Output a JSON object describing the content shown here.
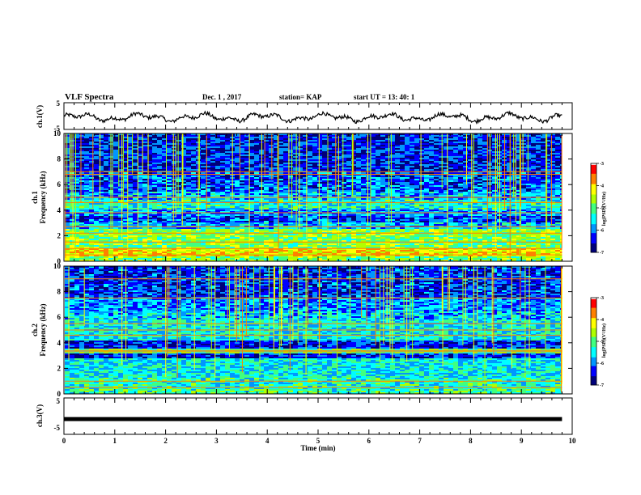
{
  "header": {
    "title": "VLF Spectra",
    "date": "Dec. 1 , 2017",
    "station": "station= KAP",
    "start": "start UT = 13: 40: 1"
  },
  "chart_data": [
    {
      "type": "line",
      "ylabel": "ch.1(V)",
      "ylim": [
        -5,
        5
      ],
      "y_ticks": [
        "5",
        "-5"
      ],
      "xlim": [
        0,
        10
      ],
      "color": "#000000",
      "x_end": 9.8,
      "wave": {
        "level": -0.5,
        "amplitude": 1.8,
        "noise": 0.7
      }
    },
    {
      "type": "heatmap",
      "ylabel": "Frequency (kHz)",
      "channel_label": "ch.1",
      "xlim": [
        0,
        10
      ],
      "ylim": [
        0,
        10
      ],
      "y_ticks": [
        "0",
        "2",
        "4",
        "6",
        "8",
        "10"
      ],
      "x_end": 9.8,
      "colorbar": {
        "label": "log(PSD)(V²/Hz)",
        "ticks": [
          "-3",
          "-4",
          "-5",
          "-6",
          "-7"
        ],
        "range": [
          -7,
          -3
        ]
      },
      "colormap": [
        "#000000",
        "#00007a",
        "#0000ff",
        "#0096ff",
        "#00ffff",
        "#40ff80",
        "#b0ff00",
        "#ffff00",
        "#ff8000",
        "#ff0000",
        "#ffffff"
      ],
      "bands": [
        [
          0,
          0.4,
          0.55
        ],
        [
          0.4,
          1.0,
          0.7
        ],
        [
          1.0,
          2.0,
          0.55
        ],
        [
          2.0,
          2.5,
          0.55
        ],
        [
          2.5,
          3.0,
          0.35
        ],
        [
          3.0,
          3.5,
          0.25
        ],
        [
          3.5,
          4.0,
          0.3
        ],
        [
          4.0,
          4.8,
          0.42
        ],
        [
          4.8,
          5.5,
          0.33
        ],
        [
          5.5,
          7.0,
          0.25
        ],
        [
          7.0,
          10.0,
          0.2
        ]
      ],
      "lines_khz": [
        0.5,
        1.0,
        1.5,
        2.2,
        2.7,
        3.8,
        4.6,
        5.0,
        6.8,
        7.0
      ],
      "spikes_per_min": 8
    },
    {
      "type": "heatmap",
      "ylabel": "Frequency (kHz)",
      "channel_label": "ch.2",
      "xlim": [
        0,
        10
      ],
      "ylim": [
        0,
        10
      ],
      "y_ticks": [
        "0",
        "2",
        "4",
        "6",
        "8",
        "10"
      ],
      "x_end": 9.8,
      "colorbar": {
        "label": "log(PSD)(V²/Hz)",
        "ticks": [
          "-3",
          "-4",
          "-5",
          "-6",
          "-7"
        ],
        "range": [
          -7,
          -3
        ]
      },
      "colormap": [
        "#000000",
        "#00007a",
        "#0000ff",
        "#0096ff",
        "#00ffff",
        "#40ff80",
        "#b0ff00",
        "#ffff00",
        "#ff8000",
        "#ff0000",
        "#ffffff"
      ],
      "bands": [
        [
          0,
          0.4,
          0.48
        ],
        [
          0.4,
          1.3,
          0.45
        ],
        [
          1.3,
          2.8,
          0.4
        ],
        [
          2.8,
          3.2,
          0.2
        ],
        [
          3.2,
          3.5,
          0.5
        ],
        [
          3.5,
          4.2,
          0.2
        ],
        [
          4.2,
          5.8,
          0.4
        ],
        [
          5.8,
          6.5,
          0.35
        ],
        [
          6.5,
          7.5,
          0.3
        ],
        [
          7.5,
          10.0,
          0.22
        ]
      ],
      "lines_khz": [
        0.5,
        1.0,
        3.3,
        3.4,
        4.6,
        5.0,
        5.5,
        7.5,
        9.0
      ],
      "spikes_per_min": 7
    },
    {
      "type": "line",
      "ylabel": "ch.3(V)",
      "ylim": [
        -5,
        5
      ],
      "y_ticks": [
        "5",
        "-5"
      ],
      "xlim": [
        0,
        10
      ],
      "color": "#000000",
      "x_end": 9.8,
      "wave": {
        "level": -0.8,
        "amplitude": 0.0,
        "noise": 0.0
      }
    }
  ],
  "xaxis": {
    "label": "Time (min)",
    "ticks": [
      "0",
      "1",
      "2",
      "3",
      "4",
      "5",
      "6",
      "7",
      "8",
      "9",
      "10"
    ]
  }
}
